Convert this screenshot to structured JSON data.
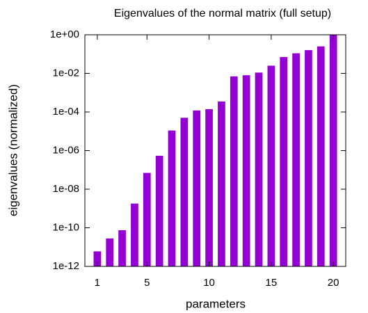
{
  "chart_data": {
    "type": "bar",
    "title": "Eigenvalues of the normal matrix (full setup)",
    "xlabel": "parameters",
    "ylabel": "eigenvalues (normalized)",
    "x": [
      1,
      2,
      3,
      4,
      5,
      6,
      7,
      8,
      9,
      10,
      11,
      12,
      13,
      14,
      15,
      16,
      17,
      18,
      19,
      20
    ],
    "values": [
      6e-12,
      2.8e-11,
      7.5e-11,
      1.8e-09,
      7e-08,
      5.4e-07,
      1.1e-05,
      5e-05,
      0.00012,
      0.00014,
      0.00035,
      0.007,
      0.008,
      0.011,
      0.025,
      0.07,
      0.11,
      0.16,
      0.25,
      1
    ],
    "color": "#9400d3",
    "xlim": [
      0,
      21
    ],
    "xticks": [
      1,
      5,
      10,
      15,
      20
    ],
    "ylim": [
      1e-12,
      1
    ],
    "ylog": true,
    "yticks": [
      {
        "value": 1e-12,
        "label": "1e-12"
      },
      {
        "value": 1e-10,
        "label": "1e-10"
      },
      {
        "value": 1e-08,
        "label": "1e-08"
      },
      {
        "value": 1e-06,
        "label": "1e-06"
      },
      {
        "value": 0.0001,
        "label": "1e-04"
      },
      {
        "value": 0.01,
        "label": "1e-02"
      },
      {
        "value": 1,
        "label": "1e+00"
      }
    ]
  }
}
